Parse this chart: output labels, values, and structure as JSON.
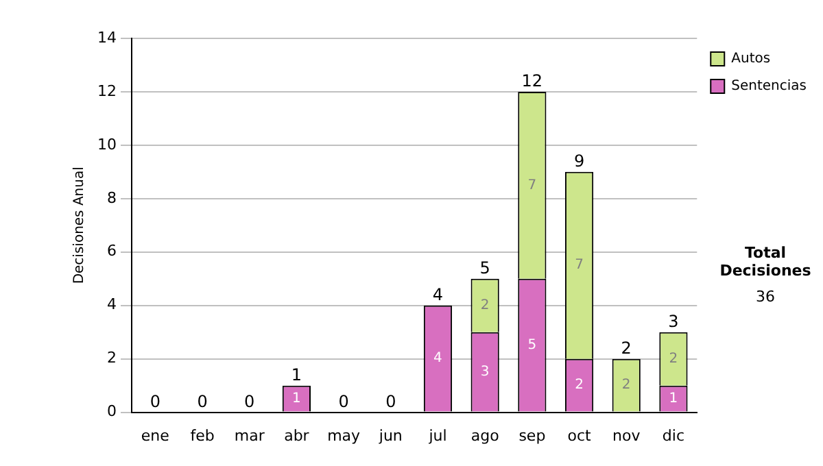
{
  "chart_data": {
    "type": "bar",
    "stacked": true,
    "ylabel": "Decisiones Anual",
    "categories": [
      "ene",
      "feb",
      "mar",
      "abr",
      "may",
      "jun",
      "jul",
      "ago",
      "sep",
      "oct",
      "nov",
      "dic"
    ],
    "series": [
      {
        "name": "Sentencias",
        "color": "#d86fc0",
        "values": [
          0,
          0,
          0,
          1,
          0,
          0,
          4,
          3,
          5,
          2,
          0,
          1
        ],
        "value_labels": [
          null,
          null,
          null,
          "1",
          null,
          null,
          "4",
          "3",
          "5",
          "2",
          null,
          "1"
        ]
      },
      {
        "name": "Autos",
        "color": "#cde68c",
        "values": [
          0,
          0,
          0,
          0,
          0,
          0,
          0,
          2,
          7,
          7,
          2,
          2
        ],
        "value_labels": [
          null,
          null,
          null,
          null,
          null,
          null,
          null,
          "2",
          "7",
          "7",
          "2",
          "2"
        ]
      }
    ],
    "totals": [
      "0",
      "0",
      "0",
      "1",
      "0",
      "0",
      "4",
      "5",
      "12",
      "9",
      "2",
      "3"
    ],
    "ylim": [
      0,
      14
    ],
    "yticks": [
      0,
      2,
      4,
      6,
      8,
      10,
      12,
      14
    ],
    "grid": "y",
    "legend": "right",
    "annotations": [
      "Total Decisiones",
      "36"
    ]
  }
}
